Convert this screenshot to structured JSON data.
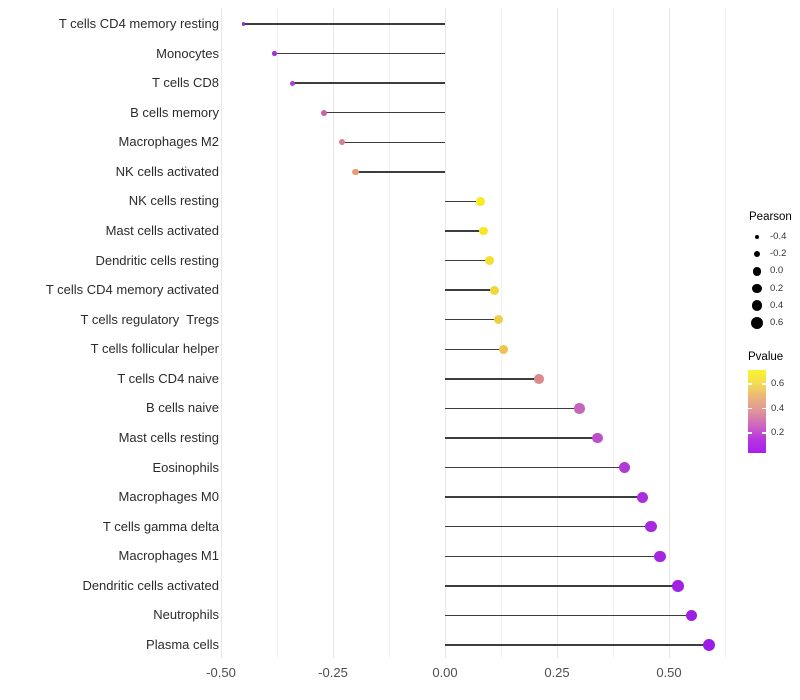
{
  "chart_data": {
    "type": "lollipop",
    "orientation": "horizontal",
    "title": "",
    "xlabel": "",
    "ylabel": "",
    "xlim": [
      -0.5,
      0.64
    ],
    "grid": "on",
    "x_ticks": [
      "-0.50",
      "-0.25",
      "0.00",
      "0.25",
      "0.50"
    ],
    "x_tick_values": [
      -0.5,
      -0.25,
      0,
      0.25,
      0.5
    ],
    "x_minor_values": [
      -0.375,
      -0.125,
      0.125,
      0.375,
      0.625
    ],
    "categories": [
      "T cells CD4 memory resting",
      "Monocytes",
      "T cells CD8",
      "B cells memory",
      "Macrophages M2",
      "NK cells activated",
      "NK cells resting",
      "Mast cells activated",
      "Dendritic cells resting",
      "T cells CD4 memory activated",
      "T cells regulatory  Tregs",
      "T cells follicular helper",
      "T cells CD4 naive",
      "B cells naive",
      "Mast cells resting",
      "Eosinophils",
      "Macrophages M0",
      "T cells gamma delta",
      "Macrophages M1",
      "Dendritic cells activated",
      "Neutrophils",
      "Plasma cells"
    ],
    "series": [
      {
        "name": "Pearson correlation",
        "values": [
          -0.45,
          -0.38,
          -0.34,
          -0.27,
          -0.23,
          -0.2,
          0.08,
          0.085,
          0.1,
          0.11,
          0.12,
          0.13,
          0.21,
          0.3,
          0.34,
          0.4,
          0.44,
          0.46,
          0.48,
          0.52,
          0.55,
          0.59
        ]
      }
    ],
    "dot_colors": [
      "#9C2FD2",
      "#A133D4",
      "#AC40D0",
      "#C962AA",
      "#D67E92",
      "#E89C75",
      "#F7EB21",
      "#F6E827",
      "#F4DE2F",
      "#F2D63B",
      "#F0CD46",
      "#EEC352",
      "#DB8A8E",
      "#C765BE",
      "#BC4FC9",
      "#AF3BD6",
      "#A92FDC",
      "#A62BDE",
      "#A328E0",
      "#A023E2",
      "#9D1FE4",
      "#9B1CE6"
    ],
    "legend_size": {
      "title": "Pearson",
      "position": "right",
      "ticks": [
        "-0.4",
        "-0.2",
        "0.0",
        "0.2",
        "0.4",
        "0.6"
      ],
      "values": [
        -0.4,
        -0.2,
        0.0,
        0.2,
        0.4,
        0.6
      ],
      "dot_color": "#000000"
    },
    "legend_color": {
      "title": "Pvalue",
      "position": "right",
      "ticks": [
        "0.6",
        "0.4",
        "0.2"
      ],
      "values": [
        0.6,
        0.4,
        0.2
      ],
      "gradient_stops": [
        "#F9F32A",
        "#F4DB55",
        "#EAB37D",
        "#DF939B",
        "#CE67BE",
        "#B736E0",
        "#A81FEE"
      ]
    }
  },
  "colors": {
    "background": "#ffffff",
    "stem": "#3d3d3d",
    "grid_major": "#e7e7e7",
    "grid_minor": "#f2f2f2",
    "category_text": "#2b2b2b",
    "axis_text": "#4d4d4d"
  }
}
